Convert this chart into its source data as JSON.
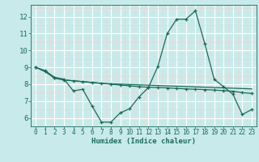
{
  "xlabel": "Humidex (Indice chaleur)",
  "bg_color": "#c8eaea",
  "line_color": "#1a6b5a",
  "grid_major_color": "#ffffff",
  "grid_minor_color": "#e8d8d8",
  "xlim": [
    -0.5,
    23.5
  ],
  "ylim": [
    5.5,
    12.7
  ],
  "yticks": [
    6,
    7,
    8,
    9,
    10,
    11,
    12
  ],
  "xticks": [
    0,
    1,
    2,
    3,
    4,
    5,
    6,
    7,
    8,
    9,
    10,
    11,
    12,
    13,
    14,
    15,
    16,
    17,
    18,
    19,
    20,
    21,
    22,
    23
  ],
  "series1_x": [
    0,
    1,
    2,
    3,
    4,
    5,
    6,
    7,
    8,
    9,
    10,
    11,
    12,
    13,
    14,
    15,
    16,
    17,
    18,
    19,
    20,
    21,
    22,
    23
  ],
  "series1_y": [
    9.0,
    8.8,
    8.4,
    8.3,
    7.6,
    7.7,
    6.7,
    5.75,
    5.75,
    6.3,
    6.55,
    7.25,
    7.8,
    9.05,
    11.0,
    11.85,
    11.85,
    12.35,
    10.4,
    8.3,
    7.85,
    7.4,
    6.2,
    6.5
  ],
  "series2_x": [
    0,
    1,
    2,
    3,
    4,
    5,
    6,
    7,
    8,
    9,
    10,
    11,
    12,
    13,
    14,
    15,
    16,
    17,
    18,
    19,
    20,
    21,
    22,
    23
  ],
  "series2_y": [
    9.0,
    8.75,
    8.4,
    8.25,
    8.2,
    8.15,
    8.1,
    8.05,
    8.0,
    7.95,
    7.9,
    7.85,
    7.82,
    7.8,
    7.78,
    7.75,
    7.72,
    7.7,
    7.68,
    7.65,
    7.62,
    7.58,
    7.5,
    7.45
  ],
  "series3_x": [
    0,
    1,
    2,
    3,
    4,
    5,
    6,
    7,
    8,
    9,
    10,
    11,
    12,
    13,
    14,
    15,
    16,
    17,
    18,
    19,
    20,
    21,
    22,
    23
  ],
  "series3_y": [
    9.0,
    8.75,
    8.35,
    8.25,
    8.2,
    8.15,
    8.1,
    8.05,
    8.02,
    8.0,
    7.98,
    7.96,
    7.94,
    7.92,
    7.9,
    7.88,
    7.86,
    7.84,
    7.82,
    7.8,
    7.78,
    7.76,
    7.74,
    7.72
  ]
}
